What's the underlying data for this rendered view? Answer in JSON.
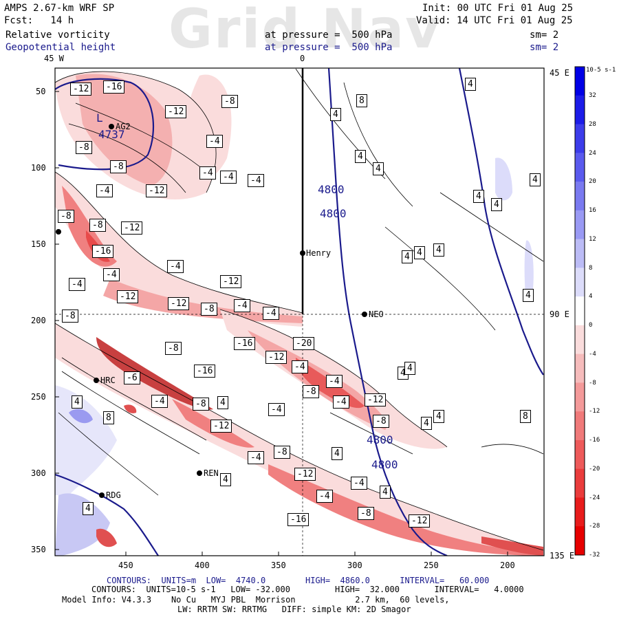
{
  "header": {
    "model_title": "AMPS 2.67-km WRF SP",
    "forecast": "Fcst:   14 h",
    "init": "Init: 00 UTC Fri 01 Aug 25",
    "valid": "Valid: 14 UTC Fri 01 Aug 25",
    "field1_name": "Relative vorticity",
    "field1_level": "at pressure =  500 hPa",
    "field1_smooth": "sm= 2",
    "field2_name": "Geopotential height",
    "field2_level": "at pressure =  500 hPa",
    "field2_smooth": "sm= 2",
    "watermark": "Grid Nav"
  },
  "map_labels": {
    "top_left_lon": "45 W",
    "top_center_lon": "0",
    "right_top": "45 E",
    "right_mid": "90 E",
    "right_bottom": "135 E",
    "y_ticks": [
      "50",
      "100",
      "150",
      "200",
      "250",
      "300",
      "350"
    ],
    "x_ticks": [
      "450",
      "400",
      "350",
      "300",
      "250",
      "200"
    ],
    "stations": [
      "AG2",
      "Henry",
      "NEO",
      "HRC",
      "REN",
      "RDG"
    ],
    "low_center": "L",
    "low_value": "4737",
    "height_labels": [
      "4800",
      "4800",
      "4800",
      "4800"
    ],
    "vort_labels": [
      "-12",
      "-16",
      "-12",
      "-8",
      "-8",
      "-4",
      "-8",
      "-4",
      "-4",
      "-4",
      "-12",
      "-4",
      "-8",
      "-8",
      "-12",
      "-16",
      "-4",
      "-4",
      "-12",
      "-12",
      "-12",
      "-8",
      "-4",
      "-4",
      "-8",
      "-4",
      "-8",
      "-16",
      "-16",
      "-12",
      "-20",
      "-4",
      "-6",
      "-4",
      "-8",
      "-4",
      "-12",
      "-4",
      "-8",
      "-12",
      "-8",
      "-4",
      "-4",
      "-8",
      "-4",
      "-12",
      "-16",
      "-4",
      "-8",
      "-12"
    ],
    "pos_labels": [
      "4",
      "8",
      "4",
      "4",
      "4",
      "4",
      "4",
      "4",
      "4",
      "4",
      "4",
      "4",
      "4",
      "4",
      "8",
      "4",
      "4",
      "4",
      "4",
      "8",
      "4",
      "4",
      "4",
      "4"
    ]
  },
  "colorbar": {
    "unit": "10-5 s-1",
    "ticks": [
      "32",
      "28",
      "24",
      "20",
      "16",
      "12",
      "8",
      "4",
      "0",
      "-4",
      "-8",
      "-12",
      "-16",
      "-20",
      "-24",
      "-28",
      "-32"
    ],
    "colors": [
      "#0000e6",
      "#1c1ce8",
      "#3c3cea",
      "#5a5aee",
      "#7a7af0",
      "#9a9af4",
      "#bcbcf6",
      "#dcdcfa",
      "#ffffff",
      "#fadcdc",
      "#f6bcbc",
      "#f49a9a",
      "#f07a7a",
      "#ee5a5a",
      "#ea3c3c",
      "#e81c1c",
      "#e60000"
    ]
  },
  "footer": {
    "line1_label": "CONTOURS:  UNITS=m  LOW=  4740.0        HIGH=  4860.0      INTERVAL=   60.000",
    "line2_label": "CONTOURS:  UNITS=10-5 s-1   LOW= -32.000         HIGH=  32.000       INTERVAL=   4.0000",
    "line3": "Model Info: V4.3.3    No Cu   MYJ PBL  Morrison            2.7 km,  60 levels,",
    "line4": "LW: RRTM SW: RRTMG   DIFF: simple KM: 2D Smagor"
  }
}
